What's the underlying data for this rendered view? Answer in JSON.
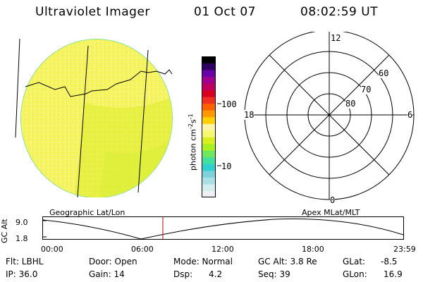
{
  "header": {
    "title": "Ultraviolet Imager",
    "date": "01 Oct 07",
    "time": "08:02:59 UT"
  },
  "colorbar": {
    "unit": "photon cm",
    "unit_exp1": "-2",
    "unit_mid": "s",
    "unit_exp2": "-1",
    "tick_100": "100",
    "tick_10": "10",
    "colors": [
      "#eef0f4",
      "#d4eef0",
      "#a8e0e6",
      "#7fd2dc",
      "#2cd0d0",
      "#3fe0a0",
      "#6ee860",
      "#a8f020",
      "#d8f020",
      "#f8f870",
      "#fbf3a6",
      "#ffd000",
      "#ff9a00",
      "#ff6000",
      "#f03020",
      "#d80020",
      "#c00060",
      "#a00090",
      "#6a00a8",
      "#300060",
      "#000000"
    ]
  },
  "polar": {
    "mlt_top": "12",
    "mlt_left": "18",
    "mlt_right": "6",
    "mlt_bottom": "0",
    "lat_60": "60",
    "lat_70": "70",
    "lat_80": "80"
  },
  "timeline": {
    "left_label": "Geographic Lat/Lon",
    "right_label": "Apex MLat/MLT",
    "axis_label": "GC Alt",
    "y_top": "9.0",
    "y_bottom": "1.8",
    "ticks": [
      "00:00",
      "06:00",
      "12:00",
      "18:00",
      "23:59"
    ]
  },
  "status": {
    "flt": "Flt: LBHL",
    "door": "Door: Open",
    "mode": "Mode: Normal",
    "gcalt": "GC Alt: 3.8 Re",
    "glat_label": "GLat:",
    "glat": "-8.5",
    "ip": "IP: 36.0",
    "gain": "Gain: 14",
    "dsp_label": "Dsp:",
    "dsp": "4.2",
    "seq": "Seq: 39",
    "glon_label": "GLon:",
    "glon": "16.9"
  }
}
